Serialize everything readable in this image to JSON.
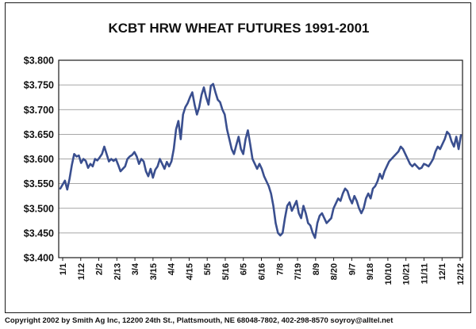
{
  "colors": {
    "line": "#3a4f8f",
    "grid": "#888888",
    "frame": "#1a1a1a"
  },
  "footer": "Copyright 2002 by Smith Ag Inc, 12200 24th St., Plattsmouth, NE 68048-7802, 402-298-8570 soyroy@alltel.net",
  "chart_data": {
    "type": "line",
    "title": "KCBT HRW WHEAT FUTURES 1991-2001",
    "xlabel": "",
    "ylabel": "",
    "ylim": [
      3.4,
      3.8
    ],
    "grid": true,
    "y_ticks": [
      "$3.800",
      "$3.750",
      "$3.700",
      "$3.650",
      "$3.600",
      "$3.550",
      "$3.500",
      "$3.450",
      "$3.400"
    ],
    "x_ticks": [
      "1/1",
      "1/12",
      "2/2",
      "2/13",
      "3/4",
      "3/15",
      "4/4",
      "4/15",
      "5/5",
      "5/16",
      "6/5",
      "6/16",
      "7/8",
      "7/19",
      "8/9",
      "8/20",
      "9/7",
      "9/18",
      "10/10",
      "10/21",
      "11/11",
      "12/1",
      "12/12"
    ],
    "series": [
      {
        "values": [
          3.54,
          3.548,
          3.556,
          3.538,
          3.56,
          3.588,
          3.61,
          3.605,
          3.607,
          3.592,
          3.6,
          3.596,
          3.582,
          3.59,
          3.585,
          3.6,
          3.597,
          3.603,
          3.61,
          3.625,
          3.61,
          3.595,
          3.6,
          3.596,
          3.6,
          3.588,
          3.575,
          3.58,
          3.585,
          3.6,
          3.605,
          3.608,
          3.614,
          3.605,
          3.59,
          3.6,
          3.595,
          3.575,
          3.565,
          3.58,
          3.562,
          3.578,
          3.585,
          3.6,
          3.59,
          3.58,
          3.594,
          3.585,
          3.595,
          3.62,
          3.66,
          3.677,
          3.64,
          3.69,
          3.705,
          3.713,
          3.725,
          3.735,
          3.71,
          3.69,
          3.705,
          3.73,
          3.745,
          3.725,
          3.71,
          3.748,
          3.752,
          3.735,
          3.72,
          3.715,
          3.7,
          3.69,
          3.66,
          3.64,
          3.62,
          3.61,
          3.628,
          3.645,
          3.62,
          3.61,
          3.64,
          3.658,
          3.63,
          3.6,
          3.59,
          3.58,
          3.59,
          3.58,
          3.565,
          3.555,
          3.545,
          3.53,
          3.505,
          3.47,
          3.45,
          3.445,
          3.45,
          3.48,
          3.505,
          3.512,
          3.495,
          3.505,
          3.515,
          3.49,
          3.48,
          3.505,
          3.49,
          3.47,
          3.465,
          3.45,
          3.44,
          3.47,
          3.485,
          3.49,
          3.48,
          3.47,
          3.475,
          3.48,
          3.5,
          3.51,
          3.52,
          3.515,
          3.53,
          3.54,
          3.535,
          3.52,
          3.51,
          3.525,
          3.515,
          3.5,
          3.49,
          3.5,
          3.52,
          3.53,
          3.52,
          3.54,
          3.545,
          3.555,
          3.57,
          3.56,
          3.575,
          3.585,
          3.595,
          3.6,
          3.605,
          3.61,
          3.615,
          3.625,
          3.62,
          3.61,
          3.6,
          3.59,
          3.585,
          3.59,
          3.585,
          3.58,
          3.582,
          3.59,
          3.588,
          3.585,
          3.592,
          3.6,
          3.615,
          3.625,
          3.62,
          3.63,
          3.64,
          3.655,
          3.65,
          3.635,
          3.625,
          3.645,
          3.62,
          3.648
        ]
      }
    ]
  }
}
